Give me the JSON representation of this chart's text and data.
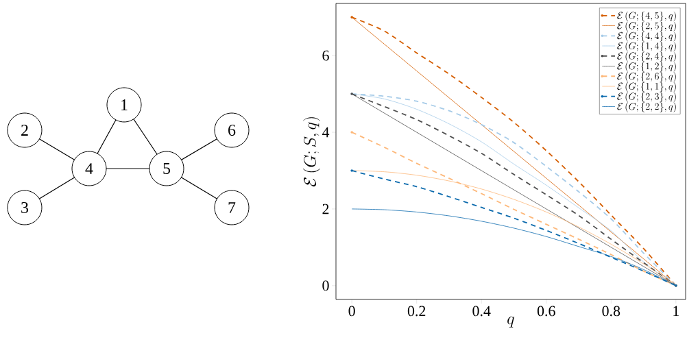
{
  "chart_data": [
    {
      "type": "other",
      "annotations": [
        "1",
        "2",
        "3",
        "4",
        "5",
        "6",
        "7"
      ]
    },
    {
      "type": "line",
      "xlabel": "q",
      "ylabel": "\\mathcal{E}\\left(G;S,q\\right)",
      "x": [
        0,
        0.1,
        0.2,
        0.3,
        0.4,
        0.5,
        0.6,
        0.7,
        0.8,
        0.9,
        1
      ],
      "xlim": [
        -0.049,
        1.03
      ],
      "ylim": [
        -0.36,
        7.36
      ],
      "xticks": [
        0,
        0.2,
        0.4,
        0.6,
        0.8,
        1
      ],
      "yticks": [
        0,
        2,
        4,
        6
      ],
      "legend": "top right",
      "series": [
        {
          "name": "\\mathcal{E}\\left(G;\\{4,5\\},q\\right)",
          "color": "#d55e00",
          "line_style": "dashed",
          "values": [
            7,
            6.64,
            6.07,
            5.52,
            4.91,
            4.26,
            3.52,
            2.71,
            1.84,
            0.97,
            0
          ]
        },
        {
          "name": "\\mathcal{E}\\left(G;\\{2,5\\},q\\right)",
          "color": "#d55e00",
          "line_style": "solid",
          "values": [
            7,
            6.3,
            5.6,
            4.9,
            4.2,
            3.5,
            2.8,
            2.1,
            1.4,
            0.7,
            0
          ]
        },
        {
          "name": "\\mathcal{E}\\left(G;\\{4,4\\},q\\right)",
          "color": "#a6cbe8",
          "line_style": "dashed",
          "values": [
            5,
            4.94,
            4.81,
            4.56,
            4.2,
            3.73,
            3.11,
            2.45,
            1.74,
            0.85,
            0
          ]
        },
        {
          "name": "\\mathcal{E}\\left(G;\\{1,4\\},q\\right)",
          "color": "#a6cbe8",
          "line_style": "solid",
          "values": [
            5,
            4.87,
            4.6,
            4.22,
            3.75,
            3.17,
            2.62,
            2.03,
            1.43,
            0.62,
            0
          ]
        },
        {
          "name": "\\mathcal{E}\\left(G;\\{2,4\\},q\\right)",
          "color": "#505050",
          "line_style": "dashed",
          "values": [
            5,
            4.67,
            4.33,
            3.91,
            3.45,
            2.9,
            2.37,
            1.83,
            1.21,
            0.6,
            0
          ]
        },
        {
          "name": "\\mathcal{E}\\left(G;\\{1,2\\},q\\right)",
          "color": "#505050",
          "line_style": "solid",
          "values": [
            5,
            4.5,
            4,
            3.5,
            3,
            2.5,
            2,
            1.5,
            1,
            0.5,
            0
          ]
        },
        {
          "name": "\\mathcal{E}\\left(G;\\{2,6\\},q\\right)",
          "color": "#fdb87a",
          "line_style": "dashed",
          "values": [
            4,
            3.61,
            3.19,
            2.8,
            2.4,
            1.99,
            1.6,
            1.21,
            0.81,
            0.38,
            0
          ]
        },
        {
          "name": "\\mathcal{E}\\left(G;\\{1,1\\},q\\right)",
          "color": "#fdb87a",
          "line_style": "solid",
          "values": [
            3,
            2.97,
            2.88,
            2.73,
            2.52,
            2.25,
            1.92,
            1.53,
            1.08,
            0.57,
            0
          ]
        },
        {
          "name": "\\mathcal{E}\\left(G;\\{2,3\\},q\\right)",
          "color": "#0b6aad",
          "line_style": "dashed",
          "values": [
            3,
            2.78,
            2.58,
            2.32,
            2.04,
            1.76,
            1.44,
            1.1,
            0.74,
            0.38,
            0
          ]
        },
        {
          "name": "\\mathcal{E}\\left(G;\\{2,2\\},q\\right)",
          "color": "#0b6aad",
          "line_style": "solid",
          "values": [
            2,
            1.98,
            1.92,
            1.82,
            1.68,
            1.5,
            1.28,
            1.02,
            0.76,
            0.42,
            0
          ]
        }
      ]
    }
  ]
}
